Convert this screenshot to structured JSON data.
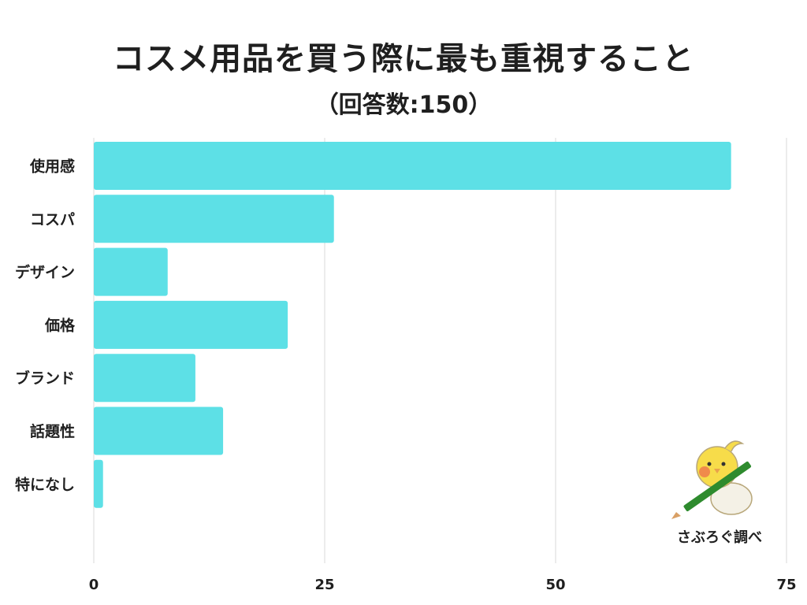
{
  "title": "コスメ用品を買う際に最も重視すること",
  "subtitle": "（回答数:150）",
  "credit": "さぶろぐ調べ",
  "colors": {
    "bar": "#5de0e6",
    "grid": "#d9d9d9",
    "text": "#1f1f1f"
  },
  "chart_data": {
    "type": "bar",
    "orientation": "horizontal",
    "categories": [
      "使用感",
      "コスパ",
      "デザイン",
      "価格",
      "ブランド",
      "話題性",
      "特になし"
    ],
    "values": [
      69,
      26,
      8,
      21,
      11,
      14,
      1
    ],
    "xlim": [
      0,
      75
    ],
    "xticks": [
      0,
      25,
      50,
      75
    ],
    "grid": true
  }
}
